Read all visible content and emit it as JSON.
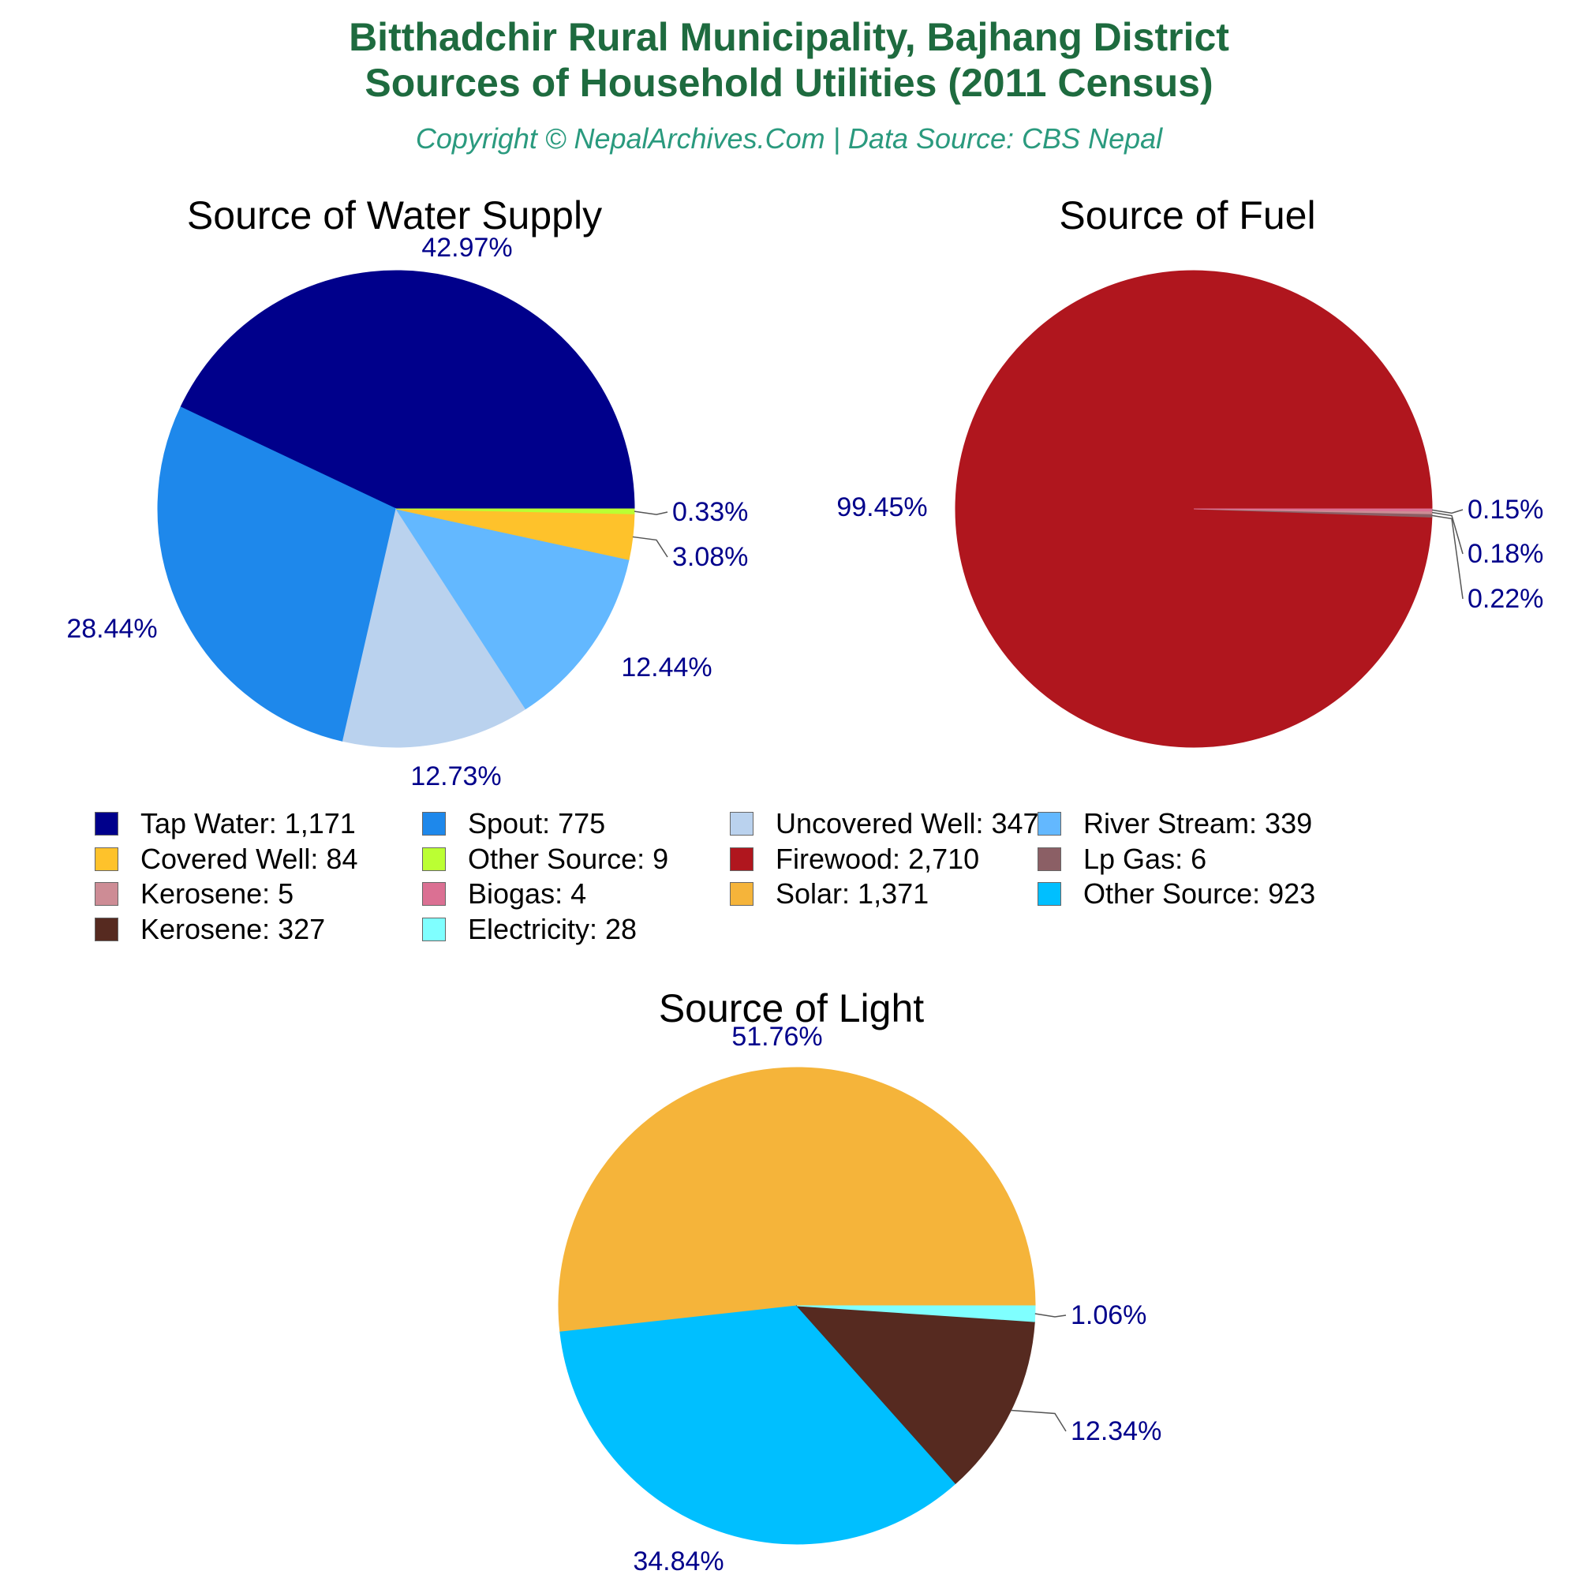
{
  "header": {
    "title_line1": "Bitthadchir Rural Municipality, Bajhang District",
    "title_line2": "Sources of Household Utilities (2011 Census)",
    "subtitle": "Copyright © NepalArchives.Com | Data Source: CBS Nepal"
  },
  "chart_data": [
    {
      "type": "pie",
      "title": "Source of Water Supply",
      "slices": [
        {
          "name": "Tap Water",
          "value": 1171,
          "percent_label": "42.97%",
          "color": "#00008b"
        },
        {
          "name": "Spout",
          "value": 775,
          "percent_label": "28.44%",
          "color": "#1e88eb"
        },
        {
          "name": "Uncovered Well",
          "value": 347,
          "percent_label": "12.73%",
          "color": "#bad2ee"
        },
        {
          "name": "River Stream",
          "value": 339,
          "percent_label": "12.44%",
          "color": "#63b8ff"
        },
        {
          "name": "Covered Well",
          "value": 84,
          "percent_label": "3.08%",
          "color": "#fec22b"
        },
        {
          "name": "Other Source",
          "value": 9,
          "percent_label": "0.33%",
          "color": "#bbff33"
        }
      ]
    },
    {
      "type": "pie",
      "title": "Source of Fuel",
      "slices": [
        {
          "name": "Firewood",
          "value": 2710,
          "percent_label": "99.45%",
          "color": "#b0161e"
        },
        {
          "name": "Lp Gas",
          "value": 6,
          "percent_label": "0.22%",
          "color": "#8b5f65"
        },
        {
          "name": "Kerosene",
          "value": 5,
          "percent_label": "0.18%",
          "color": "#cd8c95"
        },
        {
          "name": "Biogas",
          "value": 4,
          "percent_label": "0.15%",
          "color": "#db7093"
        }
      ]
    },
    {
      "type": "pie",
      "title": "Source of Light",
      "slices": [
        {
          "name": "Solar",
          "value": 1371,
          "percent_label": "51.76%",
          "color": "#f5b43a"
        },
        {
          "name": "Other Source",
          "value": 923,
          "percent_label": "34.84%",
          "color": "#00bfff"
        },
        {
          "name": "Kerosene",
          "value": 327,
          "percent_label": "12.34%",
          "color": "#562a20"
        },
        {
          "name": "Electricity",
          "value": 28,
          "percent_label": "1.06%",
          "color": "#7fffff"
        }
      ]
    }
  ],
  "legend": {
    "items": [
      {
        "text": "Tap Water: 1,171",
        "color": "#00008b"
      },
      {
        "text": "Spout: 775",
        "color": "#1e88eb"
      },
      {
        "text": "Uncovered Well: 347",
        "color": "#bad2ee"
      },
      {
        "text": "River Stream: 339",
        "color": "#63b8ff"
      },
      {
        "text": "Covered Well: 84",
        "color": "#fec22b"
      },
      {
        "text": "Other Source: 9",
        "color": "#bbff33"
      },
      {
        "text": "Firewood: 2,710",
        "color": "#b0161e"
      },
      {
        "text": "Lp Gas: 6",
        "color": "#8b5f65"
      },
      {
        "text": "Kerosene: 5",
        "color": "#cd8c95"
      },
      {
        "text": "Biogas: 4",
        "color": "#db7093"
      },
      {
        "text": "Solar: 1,371",
        "color": "#f5b43a"
      },
      {
        "text": "Other Source: 923",
        "color": "#00bfff"
      },
      {
        "text": "Kerosene: 327",
        "color": "#562a20"
      },
      {
        "text": "Electricity: 28",
        "color": "#7fffff"
      }
    ]
  }
}
